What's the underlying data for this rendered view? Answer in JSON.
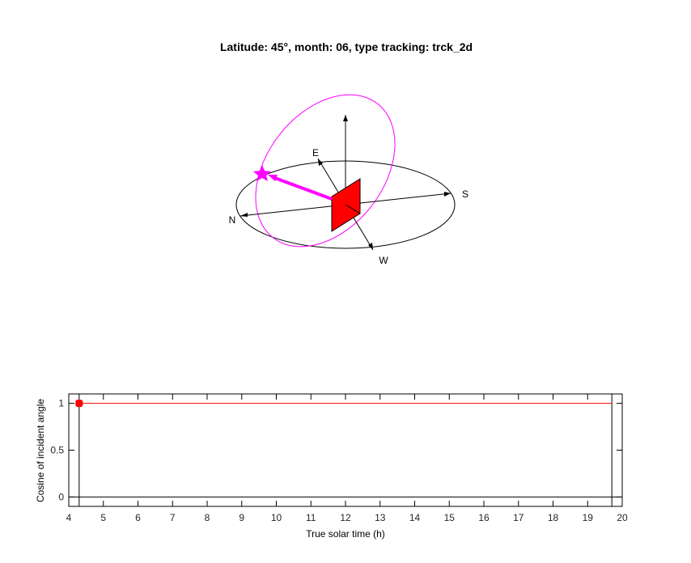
{
  "figure": {
    "title": "Latitude: 45°, month: 06, type tracking: trck_2d"
  },
  "scene": {
    "directions": {
      "north": "N",
      "south": "S",
      "east": "E",
      "west": "W"
    },
    "colors": {
      "sun_path": "#ff00ff",
      "sun_marker": "#ff00ff",
      "panel_fill": "#ff0000",
      "panel_edge": "#000000",
      "axes": "#000000"
    },
    "icons": {
      "sun": "star"
    }
  },
  "chart_data": {
    "type": "line",
    "title": "",
    "xlabel": "True solar time (h)",
    "ylabel": "Cosine of incident angle",
    "xlim": [
      4,
      20
    ],
    "ylim": [
      -0.1,
      1.1
    ],
    "xticks": [
      4,
      5,
      6,
      7,
      8,
      9,
      10,
      11,
      12,
      13,
      14,
      15,
      16,
      17,
      18,
      19,
      20
    ],
    "yticks": [
      0,
      0.5,
      1
    ],
    "ytick_labels": [
      "0",
      "0.5",
      "1"
    ],
    "grid": false,
    "series": [
      {
        "x": [
          4.3,
          19.7
        ],
        "y": [
          1,
          1
        ],
        "color": "#ff0000"
      }
    ],
    "reference_lines": {
      "zero_line_y": 0,
      "sunrise_x": 4.3,
      "sunset_x": 19.7
    },
    "current_point": {
      "x": 4.3,
      "y": 1,
      "color": "#ff0000"
    }
  }
}
